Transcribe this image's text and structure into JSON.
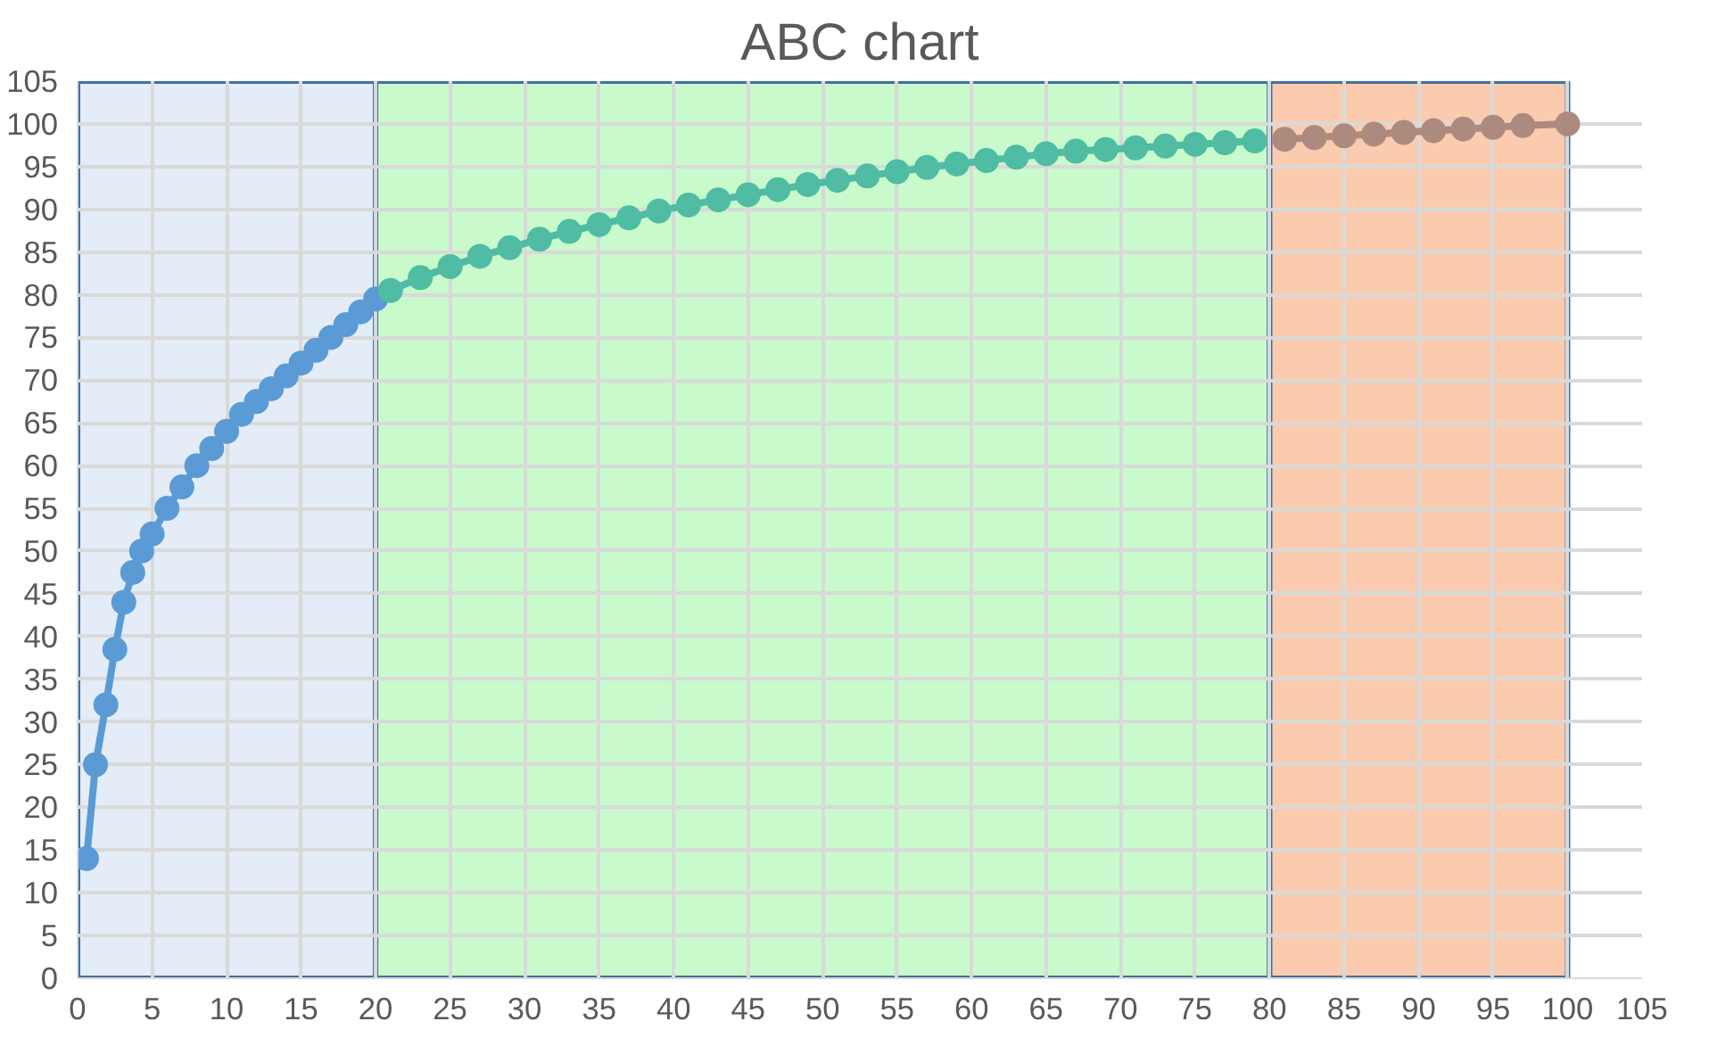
{
  "chart_data": {
    "type": "line",
    "title": "ABC chart",
    "series": [
      {
        "color": "#5b9bd5",
        "x": [
          0.6,
          1.2,
          1.9,
          2.5,
          3.1,
          3.7,
          4.3,
          5,
          6,
          7,
          8,
          9,
          10,
          11,
          12,
          13,
          14,
          15,
          16,
          17,
          18,
          19,
          20
        ],
        "values": [
          14,
          25,
          32,
          38.5,
          44,
          47.5,
          50,
          52,
          55,
          57.5,
          60,
          62,
          64,
          66,
          67.5,
          69,
          70.5,
          72,
          73.5,
          75,
          76.5,
          78,
          79.5
        ]
      },
      {
        "color": "#4fbca3",
        "x": [
          21,
          23,
          25,
          27,
          29,
          31,
          33,
          35,
          37,
          39,
          41,
          43,
          45,
          47,
          49,
          51,
          53,
          55,
          57,
          59,
          61,
          63,
          65,
          67,
          69,
          71,
          73,
          75,
          77,
          79
        ],
        "values": [
          80.5,
          82,
          83.3,
          84.5,
          85.5,
          86.5,
          87.4,
          88.2,
          89,
          89.8,
          90.5,
          91.1,
          91.7,
          92.3,
          92.9,
          93.4,
          93.9,
          94.4,
          94.9,
          95.3,
          95.7,
          96.1,
          96.5,
          96.8,
          97,
          97.2,
          97.4,
          97.6,
          97.8,
          98
        ]
      },
      {
        "color": "#ad8a7e",
        "x": [
          81,
          83,
          85,
          87,
          89,
          91,
          93,
          95,
          97,
          100
        ],
        "values": [
          98.2,
          98.4,
          98.6,
          98.8,
          99,
          99.2,
          99.4,
          99.6,
          99.8,
          100
        ]
      }
    ],
    "xlim": [
      0,
      105
    ],
    "ylim": [
      0,
      105
    ],
    "xticks": [
      0,
      5,
      10,
      15,
      20,
      25,
      30,
      35,
      40,
      45,
      50,
      55,
      60,
      65,
      70,
      75,
      80,
      85,
      90,
      95,
      100,
      105
    ],
    "yticks": [
      0,
      5,
      10,
      15,
      20,
      25,
      30,
      35,
      40,
      45,
      50,
      55,
      60,
      65,
      70,
      75,
      80,
      85,
      90,
      95,
      100,
      105
    ],
    "bands": [
      {
        "axis": "x",
        "from": 0,
        "to": 20,
        "color": "#dae6f4"
      },
      {
        "axis": "x",
        "from": 20,
        "to": 80,
        "color": "#b5f8ba"
      },
      {
        "axis": "x",
        "from": 80,
        "to": 100,
        "color": "#f8b994"
      }
    ],
    "grid": true,
    "marker": "circle",
    "line_style": "solid"
  }
}
